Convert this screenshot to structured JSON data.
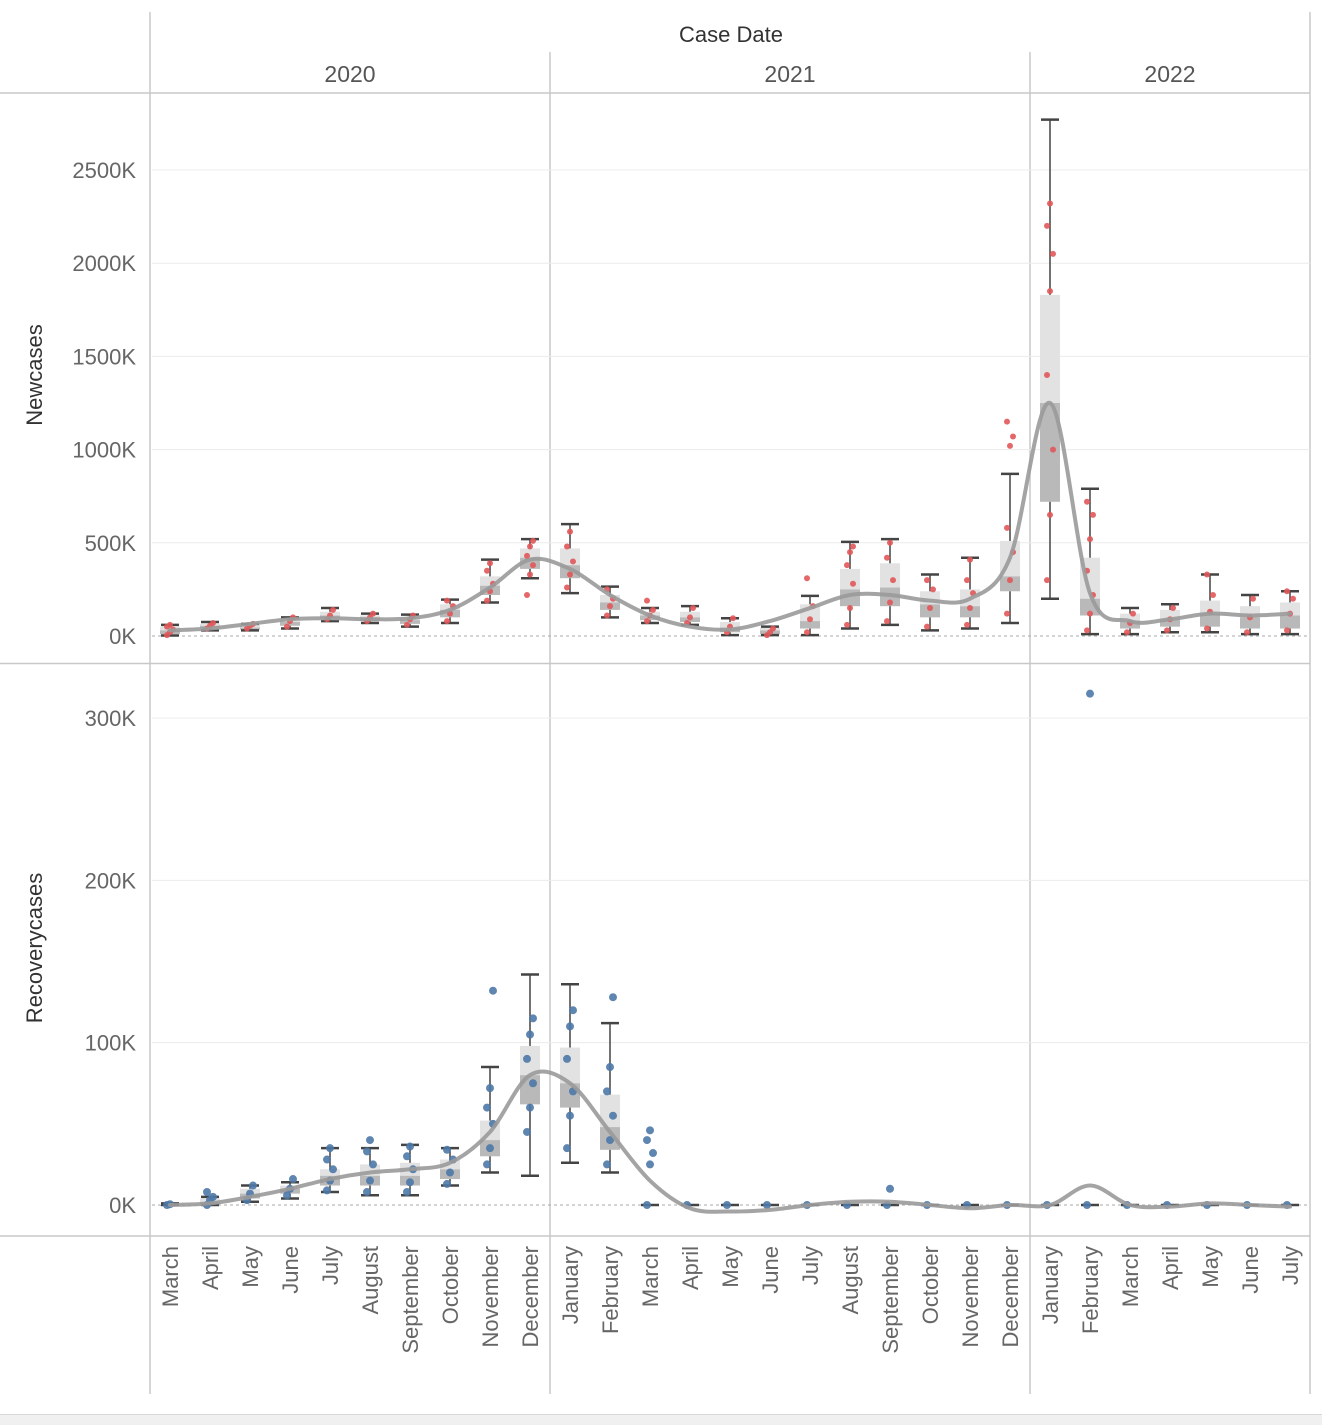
{
  "header": {
    "title": "Case Date"
  },
  "years": [
    {
      "label": "2020",
      "months": [
        "March",
        "April",
        "May",
        "June",
        "July",
        "August",
        "September",
        "October",
        "November",
        "December"
      ]
    },
    {
      "label": "2021",
      "months": [
        "January",
        "February",
        "March",
        "April",
        "May",
        "June",
        "July",
        "August",
        "September",
        "October",
        "November",
        "December"
      ]
    },
    {
      "label": "2022",
      "months": [
        "January",
        "February",
        "March",
        "April",
        "May",
        "June",
        "July"
      ]
    }
  ],
  "colors": {
    "newcases": "#e15759",
    "recovery": "#4e79a7",
    "trend": "#9a9a9a",
    "whisker": "#444444",
    "box_dark": "#b9b9b9",
    "box_light": "#e2e2e2"
  },
  "chart_data": [
    {
      "type": "box",
      "ylabel": "Newcases",
      "ylim": [
        0,
        2800000
      ],
      "yticks": [
        {
          "value": 0,
          "label": "0K"
        },
        {
          "value": 500000,
          "label": "500K"
        },
        {
          "value": 1000000,
          "label": "1000K"
        },
        {
          "value": 1500000,
          "label": "1500K"
        },
        {
          "value": 2000000,
          "label": "2000K"
        },
        {
          "value": 2500000,
          "label": "2500K"
        }
      ],
      "boxes": [
        {
          "min": 3000,
          "q1": 10000,
          "median": 30000,
          "q3": 50000,
          "max": 60000,
          "points": [
            5000,
            20000,
            35000,
            50000,
            60000
          ]
        },
        {
          "min": 30000,
          "q1": 40000,
          "median": 55000,
          "q3": 65000,
          "max": 75000,
          "points": [
            40000,
            55000,
            70000
          ]
        },
        {
          "min": 30000,
          "q1": 35000,
          "median": 45000,
          "q3": 60000,
          "max": 65000,
          "points": [
            40000,
            55000,
            65000
          ]
        },
        {
          "min": 40000,
          "q1": 55000,
          "median": 75000,
          "q3": 90000,
          "max": 100000,
          "points": [
            50000,
            80000,
            100000
          ]
        },
        {
          "min": 80000,
          "q1": 95000,
          "median": 110000,
          "q3": 130000,
          "max": 150000,
          "points": [
            90000,
            110000,
            140000
          ]
        },
        {
          "min": 70000,
          "q1": 80000,
          "median": 100000,
          "q3": 110000,
          "max": 120000,
          "points": [
            80000,
            100000,
            120000
          ]
        },
        {
          "min": 50000,
          "q1": 65000,
          "median": 85000,
          "q3": 100000,
          "max": 115000,
          "points": [
            60000,
            90000,
            110000
          ]
        },
        {
          "min": 70000,
          "q1": 100000,
          "median": 140000,
          "q3": 170000,
          "max": 195000,
          "points": [
            80000,
            120000,
            160000,
            190000
          ]
        },
        {
          "min": 180000,
          "q1": 220000,
          "median": 270000,
          "q3": 320000,
          "max": 410000,
          "points": [
            190000,
            240000,
            280000,
            350000,
            390000
          ]
        },
        {
          "min": 310000,
          "q1": 360000,
          "median": 420000,
          "q3": 470000,
          "max": 520000,
          "points": [
            220000,
            330000,
            380000,
            430000,
            480000,
            510000
          ]
        },
        {
          "min": 230000,
          "q1": 310000,
          "median": 380000,
          "q3": 470000,
          "max": 600000,
          "points": [
            260000,
            330000,
            400000,
            480000,
            560000
          ]
        },
        {
          "min": 100000,
          "q1": 140000,
          "median": 180000,
          "q3": 220000,
          "max": 265000,
          "points": [
            110000,
            160000,
            200000,
            250000
          ]
        },
        {
          "min": 70000,
          "q1": 85000,
          "median": 110000,
          "q3": 130000,
          "max": 150000,
          "points": [
            80000,
            110000,
            140000,
            190000
          ]
        },
        {
          "min": 60000,
          "q1": 75000,
          "median": 100000,
          "q3": 130000,
          "max": 160000,
          "points": [
            70000,
            100000,
            150000
          ]
        },
        {
          "min": 5000,
          "q1": 20000,
          "median": 45000,
          "q3": 75000,
          "max": 95000,
          "points": [
            20000,
            50000,
            95000
          ]
        },
        {
          "min": 5000,
          "q1": 10000,
          "median": 30000,
          "q3": 45000,
          "max": 50000,
          "points": [
            5000,
            20000,
            40000
          ]
        },
        {
          "min": 5000,
          "q1": 40000,
          "median": 80000,
          "q3": 170000,
          "max": 215000,
          "points": [
            20000,
            90000,
            160000,
            310000
          ]
        },
        {
          "min": 40000,
          "q1": 160000,
          "median": 250000,
          "q3": 360000,
          "max": 505000,
          "points": [
            60000,
            150000,
            280000,
            380000,
            450000,
            480000
          ]
        },
        {
          "min": 60000,
          "q1": 160000,
          "median": 260000,
          "q3": 390000,
          "max": 520000,
          "points": [
            80000,
            180000,
            300000,
            420000,
            500000
          ]
        },
        {
          "min": 30000,
          "q1": 100000,
          "median": 170000,
          "q3": 240000,
          "max": 330000,
          "points": [
            50000,
            150000,
            250000,
            300000
          ]
        },
        {
          "min": 40000,
          "q1": 100000,
          "median": 160000,
          "q3": 250000,
          "max": 420000,
          "points": [
            60000,
            150000,
            230000,
            300000,
            410000
          ]
        },
        {
          "min": 70000,
          "q1": 240000,
          "median": 320000,
          "q3": 510000,
          "max": 870000,
          "points": [
            120000,
            300000,
            450000,
            580000,
            1020000,
            1070000,
            1150000
          ]
        },
        {
          "min": 200000,
          "q1": 720000,
          "median": 1250000,
          "q3": 1830000,
          "max": 2770000,
          "points": [
            300000,
            650000,
            1000000,
            1400000,
            1850000,
            2050000,
            2200000,
            2320000
          ]
        },
        {
          "min": 10000,
          "q1": 110000,
          "median": 200000,
          "q3": 420000,
          "max": 790000,
          "points": [
            30000,
            120000,
            220000,
            350000,
            520000,
            650000,
            720000
          ]
        },
        {
          "min": 10000,
          "q1": 40000,
          "median": 80000,
          "q3": 120000,
          "max": 150000,
          "points": [
            20000,
            70000,
            120000
          ]
        },
        {
          "min": 20000,
          "q1": 50000,
          "median": 90000,
          "q3": 140000,
          "max": 170000,
          "points": [
            30000,
            90000,
            150000
          ]
        },
        {
          "min": 20000,
          "q1": 50000,
          "median": 120000,
          "q3": 190000,
          "max": 330000,
          "points": [
            40000,
            130000,
            220000,
            330000
          ]
        },
        {
          "min": 10000,
          "q1": 40000,
          "median": 100000,
          "q3": 160000,
          "max": 220000,
          "points": [
            20000,
            100000,
            200000
          ]
        },
        {
          "min": 10000,
          "q1": 40000,
          "median": 110000,
          "q3": 180000,
          "max": 240000,
          "points": [
            30000,
            120000,
            200000,
            240000
          ]
        }
      ],
      "trend": [
        30000,
        40000,
        65000,
        90000,
        95000,
        90000,
        95000,
        140000,
        260000,
        410000,
        360000,
        220000,
        110000,
        50000,
        35000,
        80000,
        150000,
        220000,
        220000,
        190000,
        200000,
        420000,
        1250000,
        230000,
        80000,
        90000,
        120000,
        110000,
        120000
      ]
    },
    {
      "type": "box",
      "ylabel": "Recoverycases",
      "ylim": [
        -20000,
        330000
      ],
      "yticks": [
        {
          "value": 0,
          "label": "0K"
        },
        {
          "value": 100000,
          "label": "100K"
        },
        {
          "value": 200000,
          "label": "200K"
        },
        {
          "value": 300000,
          "label": "300K"
        }
      ],
      "boxes": [
        {
          "min": 0,
          "q1": 0,
          "median": 0,
          "q3": 500,
          "max": 1000,
          "points": [
            0,
            500
          ]
        },
        {
          "min": 0,
          "q1": 500,
          "median": 2000,
          "q3": 4000,
          "max": 5000,
          "points": [
            0,
            3000,
            5000,
            8000
          ]
        },
        {
          "min": 2000,
          "q1": 4000,
          "median": 7000,
          "q3": 10000,
          "max": 12000,
          "points": [
            3000,
            7000,
            12000
          ]
        },
        {
          "min": 4000,
          "q1": 7000,
          "median": 10000,
          "q3": 12000,
          "max": 14000,
          "points": [
            6000,
            10000,
            16000
          ]
        },
        {
          "min": 8000,
          "q1": 12000,
          "median": 18000,
          "q3": 22000,
          "max": 35000,
          "points": [
            9000,
            15000,
            22000,
            28000,
            35000
          ]
        },
        {
          "min": 6000,
          "q1": 12000,
          "median": 18000,
          "q3": 25000,
          "max": 35000,
          "points": [
            8000,
            15000,
            25000,
            33000,
            40000
          ]
        },
        {
          "min": 6000,
          "q1": 12000,
          "median": 18000,
          "q3": 26000,
          "max": 37000,
          "points": [
            8000,
            14000,
            22000,
            30000,
            36000
          ]
        },
        {
          "min": 12000,
          "q1": 16000,
          "median": 22000,
          "q3": 28000,
          "max": 35000,
          "points": [
            13000,
            20000,
            28000,
            34000
          ]
        },
        {
          "min": 20000,
          "q1": 30000,
          "median": 40000,
          "q3": 52000,
          "max": 85000,
          "points": [
            25000,
            35000,
            50000,
            60000,
            72000,
            132000
          ]
        },
        {
          "min": 18000,
          "q1": 62000,
          "median": 80000,
          "q3": 98000,
          "max": 142000,
          "points": [
            45000,
            60000,
            75000,
            90000,
            105000,
            115000
          ]
        },
        {
          "min": 26000,
          "q1": 60000,
          "median": 75000,
          "q3": 97000,
          "max": 136000,
          "points": [
            35000,
            55000,
            70000,
            90000,
            110000,
            120000
          ]
        },
        {
          "min": 20000,
          "q1": 34000,
          "median": 48000,
          "q3": 68000,
          "max": 112000,
          "points": [
            25000,
            40000,
            55000,
            70000,
            85000,
            128000
          ]
        },
        {
          "min": 0,
          "q1": 0,
          "median": 0,
          "q3": 0,
          "max": 0,
          "points": [
            0,
            25000,
            32000,
            40000,
            46000
          ]
        },
        {
          "min": 0,
          "q1": 0,
          "median": 0,
          "q3": 0,
          "max": 0,
          "points": [
            0
          ]
        },
        {
          "min": 0,
          "q1": 0,
          "median": 0,
          "q3": 0,
          "max": 0,
          "points": [
            0
          ]
        },
        {
          "min": 0,
          "q1": 0,
          "median": 0,
          "q3": 0,
          "max": 0,
          "points": [
            0
          ]
        },
        {
          "min": 0,
          "q1": 0,
          "median": 0,
          "q3": 0,
          "max": 0,
          "points": [
            0
          ]
        },
        {
          "min": 0,
          "q1": 0,
          "median": 0,
          "q3": 0,
          "max": 0,
          "points": [
            0
          ]
        },
        {
          "min": 0,
          "q1": 0,
          "median": 0,
          "q3": 0,
          "max": 0,
          "points": [
            0,
            10000
          ]
        },
        {
          "min": 0,
          "q1": 0,
          "median": 0,
          "q3": 0,
          "max": 0,
          "points": [
            0
          ]
        },
        {
          "min": 0,
          "q1": 0,
          "median": 0,
          "q3": 0,
          "max": 0,
          "points": [
            0
          ]
        },
        {
          "min": 0,
          "q1": 0,
          "median": 0,
          "q3": 0,
          "max": 0,
          "points": [
            0
          ]
        },
        {
          "min": 0,
          "q1": 0,
          "median": 0,
          "q3": 0,
          "max": 0,
          "points": [
            0
          ]
        },
        {
          "min": 0,
          "q1": 0,
          "median": 0,
          "q3": 0,
          "max": 0,
          "points": [
            0,
            315000
          ]
        },
        {
          "min": 0,
          "q1": 0,
          "median": 0,
          "q3": 0,
          "max": 0,
          "points": [
            0
          ]
        },
        {
          "min": 0,
          "q1": 0,
          "median": 0,
          "q3": 0,
          "max": 0,
          "points": [
            0
          ]
        },
        {
          "min": 0,
          "q1": 0,
          "median": 0,
          "q3": 0,
          "max": 0,
          "points": [
            0
          ]
        },
        {
          "min": 0,
          "q1": 0,
          "median": 0,
          "q3": 0,
          "max": 0,
          "points": [
            0
          ]
        },
        {
          "min": 0,
          "q1": 0,
          "median": 0,
          "q3": 0,
          "max": 0,
          "points": [
            0
          ]
        }
      ],
      "trend": [
        0,
        1000,
        5000,
        10000,
        16000,
        20000,
        22000,
        26000,
        45000,
        80000,
        75000,
        45000,
        15000,
        -2000,
        -4000,
        -3000,
        0,
        2000,
        2000,
        0,
        -2000,
        0,
        0,
        12000,
        0,
        -1000,
        1000,
        0,
        -1000
      ]
    }
  ]
}
